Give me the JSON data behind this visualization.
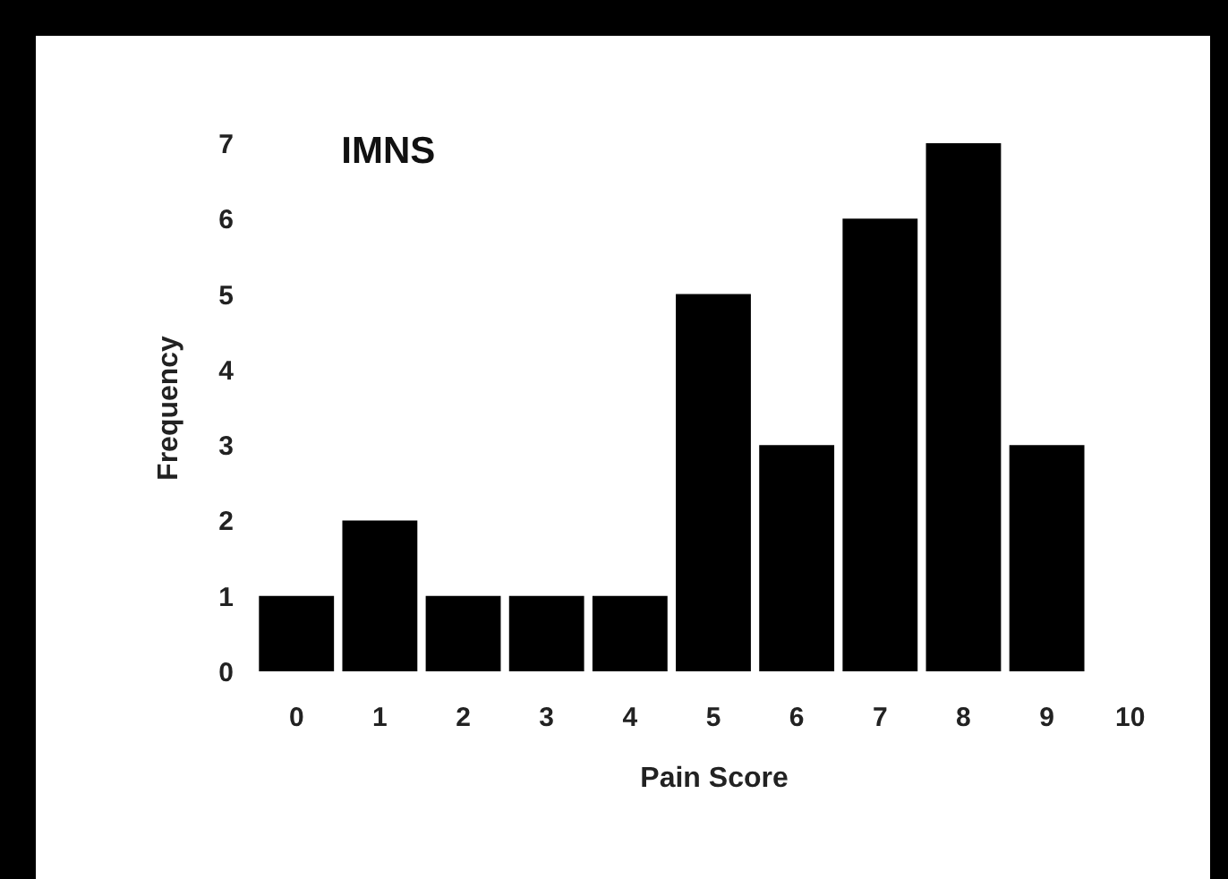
{
  "chart_data": {
    "type": "bar",
    "title": "IMNS",
    "xlabel": "Pain Score",
    "ylabel": "Frequency",
    "categories": [
      "0",
      "1",
      "2",
      "3",
      "4",
      "5",
      "6",
      "7",
      "8",
      "9",
      "10"
    ],
    "values": [
      1,
      2,
      1,
      1,
      1,
      5,
      3,
      6,
      7,
      3,
      null
    ],
    "color": "#000000",
    "ylim": [
      0,
      7
    ],
    "yticks": [
      0,
      1,
      2,
      3,
      4,
      5,
      6,
      7
    ],
    "grid": false
  }
}
